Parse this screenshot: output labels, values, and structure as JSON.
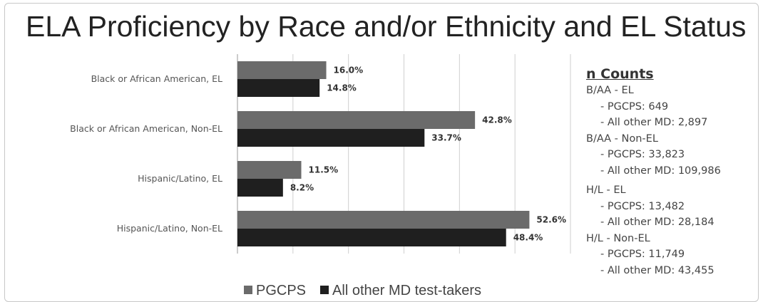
{
  "chart_data": {
    "type": "bar",
    "orientation": "horizontal",
    "title": "ELA Proficiency by Race and/or Ethnicity and EL Status",
    "categories": [
      "Black or African American, EL",
      "Black or African American, Non-EL",
      "Hispanic/Latino, EL",
      "Hispanic/Latino, Non-EL"
    ],
    "series": [
      {
        "name": "PGCPS",
        "values": [
          16.0,
          42.8,
          11.5,
          52.6
        ],
        "labels": [
          "16.0%",
          "42.8%",
          "11.5%",
          "52.6%"
        ],
        "color": "#6b6b6b"
      },
      {
        "name": "All other MD test-takers",
        "values": [
          14.8,
          33.7,
          8.2,
          48.4
        ],
        "labels": [
          "14.8%",
          "33.7%",
          "8.2%",
          "48.4%"
        ],
        "color": "#1f1f1f"
      }
    ],
    "xlim": [
      0,
      60
    ],
    "grid": true,
    "legend_position": "bottom"
  },
  "counts": {
    "heading": "n Counts",
    "lines": [
      {
        "text": "B/AA - EL",
        "indent": false
      },
      {
        "text": "- PGCPS:  649",
        "indent": true
      },
      {
        "text": "- All other MD: 2,897",
        "indent": true
      },
      {
        "text": "B/AA - Non-EL",
        "indent": false
      },
      {
        "text": "- PGCPS:  33,823",
        "indent": true
      },
      {
        "text": "- All other MD: 109,986",
        "indent": true
      },
      {
        "text": "H/L - EL",
        "indent": false,
        "gap": true
      },
      {
        "text": "- PGCPS:  13,482",
        "indent": true
      },
      {
        "text": "- All other MD: 28,184",
        "indent": true
      },
      {
        "text": "H/L - Non-EL",
        "indent": false
      },
      {
        "text": "- PGCPS:  11,749",
        "indent": true
      },
      {
        "text": "- All other MD: 43,455",
        "indent": true
      }
    ]
  },
  "colors": {
    "gridline": "#cfcfcf",
    "axis": "#999999"
  }
}
